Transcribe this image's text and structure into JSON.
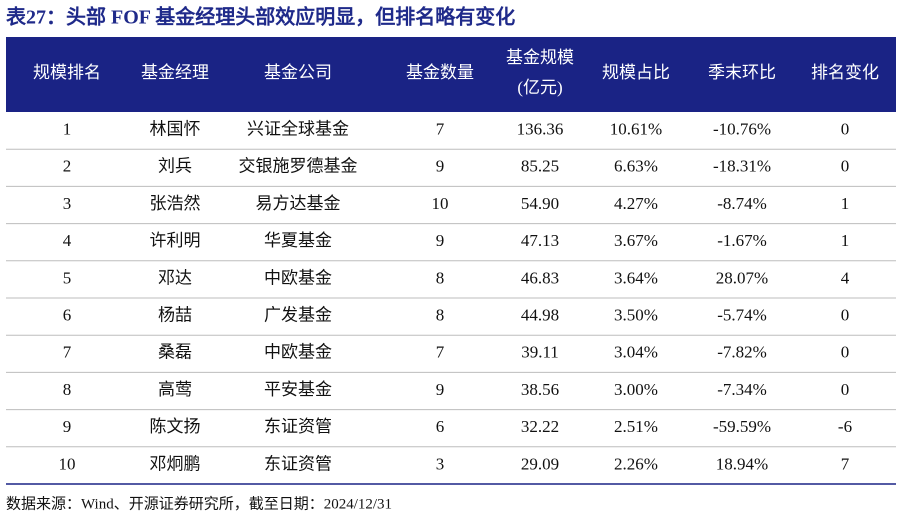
{
  "title": "表27：头部 FOF 基金经理头部效应明显，但排名略有变化",
  "table": {
    "headers": [
      [
        "规模排名"
      ],
      [
        "基金经理"
      ],
      [
        "基金公司"
      ],
      [
        "基金数量"
      ],
      [
        "基金规模",
        "(亿元)"
      ],
      [
        "规模占比"
      ],
      [
        "季末环比"
      ],
      [
        "排名变化"
      ]
    ],
    "rows": [
      [
        "1",
        "林国怀",
        "兴证全球基金",
        "7",
        "136.36",
        "10.61%",
        "-10.76%",
        "0"
      ],
      [
        "2",
        "刘兵",
        "交银施罗德基金",
        "9",
        "85.25",
        "6.63%",
        "-18.31%",
        "0"
      ],
      [
        "3",
        "张浩然",
        "易方达基金",
        "10",
        "54.90",
        "4.27%",
        "-8.74%",
        "1"
      ],
      [
        "4",
        "许利明",
        "华夏基金",
        "9",
        "47.13",
        "3.67%",
        "-1.67%",
        "1"
      ],
      [
        "5",
        "邓达",
        "中欧基金",
        "8",
        "46.83",
        "3.64%",
        "28.07%",
        "4"
      ],
      [
        "6",
        "杨喆",
        "广发基金",
        "8",
        "44.98",
        "3.50%",
        "-5.74%",
        "0"
      ],
      [
        "7",
        "桑磊",
        "中欧基金",
        "7",
        "39.11",
        "3.04%",
        "-7.82%",
        "0"
      ],
      [
        "8",
        "高莺",
        "平安基金",
        "9",
        "38.56",
        "3.00%",
        "-7.34%",
        "0"
      ],
      [
        "9",
        "陈文扬",
        "东证资管",
        "6",
        "32.22",
        "2.51%",
        "-59.59%",
        "-6"
      ],
      [
        "10",
        "邓炯鹏",
        "东证资管",
        "3",
        "29.09",
        "2.26%",
        "18.94%",
        "7"
      ]
    ]
  },
  "source": "数据来源：Wind、开源证券研究所，截至日期：2024/12/31"
}
